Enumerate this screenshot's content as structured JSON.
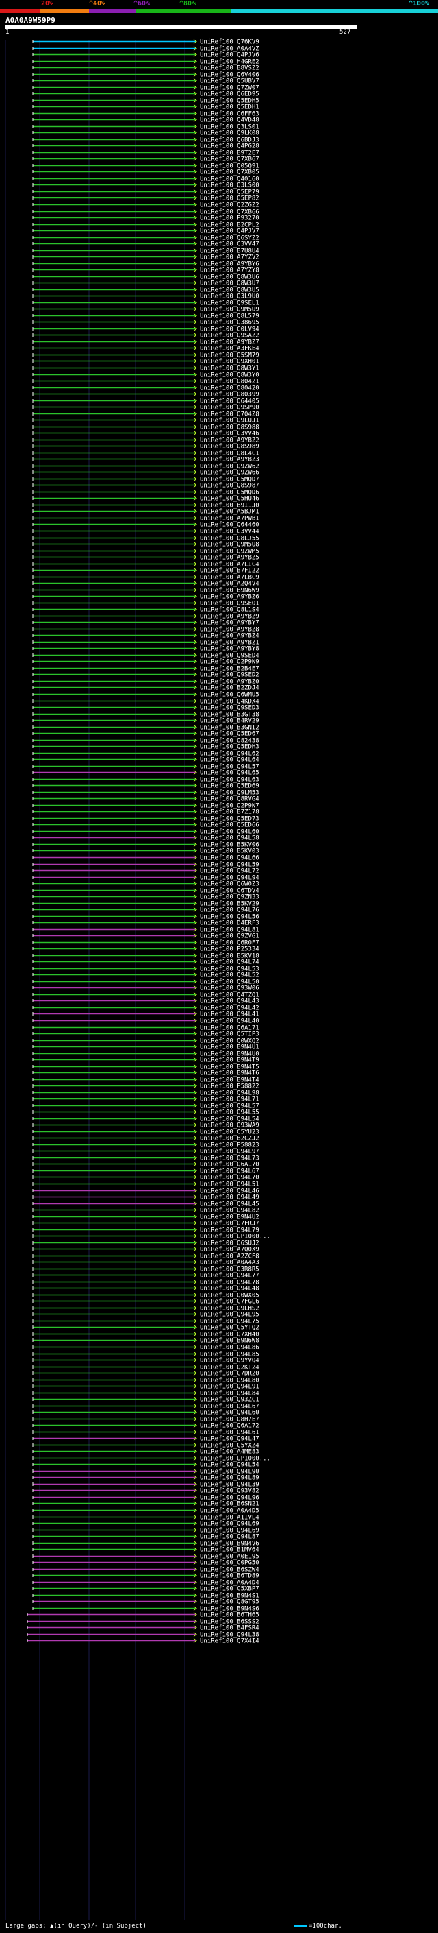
{
  "scale": {
    "labels": [
      "20%",
      "^40%",
      "^60%",
      "^80%",
      "^100%"
    ],
    "colors": [
      "#d81818",
      "#f07c10",
      "#8a1eb0",
      "#18b418",
      "#18d0d8"
    ]
  },
  "query": {
    "id": "A0A0A9W59P9",
    "start": "1",
    "end": "527"
  },
  "legend": {
    "gaps": "Large gaps: ▲(in Query)/- (in Subject)",
    "scale": "=100char."
  },
  "colors": {
    "green": "#2bc12b",
    "purple": "#b03ab0",
    "cyan": "#00c8ff",
    "head": "#c8ff2a",
    "cap": "#ffffff"
  },
  "hits": [
    {
      "name": "UniRef100_Q76KV9",
      "c": "cyan"
    },
    {
      "name": "UniRef100_A0A4VZ",
      "c": "cyan"
    },
    {
      "name": "UniRef100_Q4PJV6",
      "c": "green"
    },
    {
      "name": "UniRef100_H4GRE2",
      "c": "green"
    },
    {
      "name": "UniRef100_B8VSZ2",
      "c": "green"
    },
    {
      "name": "UniRef100_Q6V406",
      "c": "green"
    },
    {
      "name": "UniRef100_Q5UBV7",
      "c": "green"
    },
    {
      "name": "UniRef100_Q7ZW07",
      "c": "green"
    },
    {
      "name": "UniRef100_Q6ED95",
      "c": "green"
    },
    {
      "name": "UniRef100_Q5EDH5",
      "c": "green"
    },
    {
      "name": "UniRef100_Q5EDH1",
      "c": "green"
    },
    {
      "name": "UniRef100_C6FF63",
      "c": "green"
    },
    {
      "name": "UniRef100_Q4VD48",
      "c": "green"
    },
    {
      "name": "UniRef100_Q3LS01",
      "c": "green"
    },
    {
      "name": "UniRef100_Q9LK08",
      "c": "green"
    },
    {
      "name": "UniRef100_Q6BDJ3",
      "c": "green"
    },
    {
      "name": "UniRef100_Q4PG28",
      "c": "green"
    },
    {
      "name": "UniRef100_B9T2E7",
      "c": "green"
    },
    {
      "name": "UniRef100_Q7XB67",
      "c": "green"
    },
    {
      "name": "UniRef100_Q05Q91",
      "c": "green"
    },
    {
      "name": "UniRef100_Q7XB05",
      "c": "green"
    },
    {
      "name": "UniRef100_Q40160",
      "c": "green"
    },
    {
      "name": "UniRef100_Q3LS00",
      "c": "green"
    },
    {
      "name": "UniRef100_Q5EP79",
      "c": "green"
    },
    {
      "name": "UniRef100_Q5EP82",
      "c": "green"
    },
    {
      "name": "UniRef100_Q2ZGZ2",
      "c": "green"
    },
    {
      "name": "UniRef100_Q7XB66",
      "c": "green"
    },
    {
      "name": "UniRef100_P93270",
      "c": "green"
    },
    {
      "name": "UniRef100_B2CPL2",
      "c": "green"
    },
    {
      "name": "UniRef100_Q4PJV7",
      "c": "green"
    },
    {
      "name": "UniRef100_Q6SYZ2",
      "c": "green"
    },
    {
      "name": "UniRef100_C3VV47",
      "c": "green"
    },
    {
      "name": "UniRef100_B7U8U4",
      "c": "green"
    },
    {
      "name": "UniRef100_A7YZV2",
      "c": "green"
    },
    {
      "name": "UniRef100_A9YBY6",
      "c": "green"
    },
    {
      "name": "UniRef100_A7YZY8",
      "c": "green"
    },
    {
      "name": "UniRef100_Q8W3U6",
      "c": "green"
    },
    {
      "name": "UniRef100_Q8W3U7",
      "c": "green"
    },
    {
      "name": "UniRef100_Q8W3U5",
      "c": "green"
    },
    {
      "name": "UniRef100_Q3L9U0",
      "c": "green"
    },
    {
      "name": "UniRef100_Q9SEL1",
      "c": "green"
    },
    {
      "name": "UniRef100_Q9M5U9",
      "c": "green"
    },
    {
      "name": "UniRef100_Q8L579",
      "c": "green"
    },
    {
      "name": "UniRef100_Q38695",
      "c": "green"
    },
    {
      "name": "UniRef100_C0LV94",
      "c": "green"
    },
    {
      "name": "UniRef100_Q9SAZ2",
      "c": "green"
    },
    {
      "name": "UniRef100_A9YBZ7",
      "c": "green"
    },
    {
      "name": "UniRef100_A3FKE4",
      "c": "green"
    },
    {
      "name": "UniRef100_Q5SM79",
      "c": "green"
    },
    {
      "name": "UniRef100_Q9XH01",
      "c": "green"
    },
    {
      "name": "UniRef100_Q8W3Y1",
      "c": "green"
    },
    {
      "name": "UniRef100_Q8W3Y0",
      "c": "green"
    },
    {
      "name": "UniRef100_O80421",
      "c": "green"
    },
    {
      "name": "UniRef100_O80420",
      "c": "green"
    },
    {
      "name": "UniRef100_O80399",
      "c": "green"
    },
    {
      "name": "UniRef100_Q64405",
      "c": "green"
    },
    {
      "name": "UniRef100_Q9SP90",
      "c": "green"
    },
    {
      "name": "UniRef100_Q704Z8",
      "c": "green"
    },
    {
      "name": "UniRef100_Q9LUJ1",
      "c": "green"
    },
    {
      "name": "UniRef100_Q8S988",
      "c": "green"
    },
    {
      "name": "UniRef100_C3VV46",
      "c": "green"
    },
    {
      "name": "UniRef100_A9YBZ2",
      "c": "green"
    },
    {
      "name": "UniRef100_Q8S989",
      "c": "green"
    },
    {
      "name": "UniRef100_Q8L4C1",
      "c": "green"
    },
    {
      "name": "UniRef100_A9YBZ3",
      "c": "green"
    },
    {
      "name": "UniRef100_Q9ZW62",
      "c": "green"
    },
    {
      "name": "UniRef100_Q9ZW66",
      "c": "green"
    },
    {
      "name": "UniRef100_C5MQD7",
      "c": "green"
    },
    {
      "name": "UniRef100_Q8S987",
      "c": "green"
    },
    {
      "name": "UniRef100_C5MQD6",
      "c": "green"
    },
    {
      "name": "UniRef100_C5HU46",
      "c": "green"
    },
    {
      "name": "UniRef100_B9I1J0",
      "c": "green"
    },
    {
      "name": "UniRef100_A5BJM1",
      "c": "green"
    },
    {
      "name": "UniRef100_A7PWB1",
      "c": "green"
    },
    {
      "name": "UniRef100_Q64460",
      "c": "green"
    },
    {
      "name": "UniRef100_C3VV44",
      "c": "green"
    },
    {
      "name": "UniRef100_Q8LJ55",
      "c": "green"
    },
    {
      "name": "UniRef100_Q9M5U8",
      "c": "green"
    },
    {
      "name": "UniRef100_Q9ZWM5",
      "c": "green"
    },
    {
      "name": "UniRef100_A9YBZ5",
      "c": "green"
    },
    {
      "name": "UniRef100_A7LIC4",
      "c": "green"
    },
    {
      "name": "UniRef100_B7FI22",
      "c": "green"
    },
    {
      "name": "UniRef100_A7LBC9",
      "c": "green"
    },
    {
      "name": "UniRef100_A2Q4V4",
      "c": "green"
    },
    {
      "name": "UniRef100_B9N6W9",
      "c": "green"
    },
    {
      "name": "UniRef100_A9YBZ6",
      "c": "green"
    },
    {
      "name": "UniRef100_Q9SEO1",
      "c": "green"
    },
    {
      "name": "UniRef100_Q8L1S4",
      "c": "green"
    },
    {
      "name": "UniRef100_A9YBZ9",
      "c": "green"
    },
    {
      "name": "UniRef100_A9YBY7",
      "c": "green"
    },
    {
      "name": "UniRef100_A9YBZ8",
      "c": "green"
    },
    {
      "name": "UniRef100_A9YBZ4",
      "c": "green"
    },
    {
      "name": "UniRef100_A9YBZ1",
      "c": "green"
    },
    {
      "name": "UniRef100_A9YBY8",
      "c": "green"
    },
    {
      "name": "UniRef100_Q9SED4",
      "c": "green"
    },
    {
      "name": "UniRef100_O2P9N9",
      "c": "green"
    },
    {
      "name": "UniRef100_B2B4E7",
      "c": "green"
    },
    {
      "name": "UniRef100_Q9SED2",
      "c": "green"
    },
    {
      "name": "UniRef100_A9YBZ0",
      "c": "green"
    },
    {
      "name": "UniRef100_B2ZDJ4",
      "c": "green"
    },
    {
      "name": "UniRef100_Q6WMU5",
      "c": "green"
    },
    {
      "name": "UniRef100_Q4KDX4",
      "c": "green"
    },
    {
      "name": "UniRef100_Q9SED3",
      "c": "green"
    },
    {
      "name": "UniRef100_B3GT38",
      "c": "green"
    },
    {
      "name": "UniRef100_B4RV29",
      "c": "green"
    },
    {
      "name": "UniRef100_B3GNI2",
      "c": "green"
    },
    {
      "name": "UniRef100_Q5ED67",
      "c": "green"
    },
    {
      "name": "UniRef100_O82438",
      "c": "green"
    },
    {
      "name": "UniRef100_Q5EDH3",
      "c": "green"
    },
    {
      "name": "UniRef100_Q94L62",
      "c": "green"
    },
    {
      "name": "UniRef100_Q94L64",
      "c": "green"
    },
    {
      "name": "UniRef100_Q94L57",
      "c": "green"
    },
    {
      "name": "UniRef100_Q94L65",
      "c": "purple"
    },
    {
      "name": "UniRef100_Q94L63",
      "c": "green"
    },
    {
      "name": "UniRef100_Q5ED69",
      "c": "green"
    },
    {
      "name": "UniRef100_Q9LM53",
      "c": "green"
    },
    {
      "name": "UniRef100_Q8RVG4",
      "c": "green"
    },
    {
      "name": "UniRef100_O2P9N7",
      "c": "green"
    },
    {
      "name": "UniRef100_B7Z178",
      "c": "green"
    },
    {
      "name": "UniRef100_Q5ED73",
      "c": "green"
    },
    {
      "name": "UniRef100_Q5ED66",
      "c": "green"
    },
    {
      "name": "UniRef100_Q94L60",
      "c": "green"
    },
    {
      "name": "UniRef100_Q94L58",
      "c": "purple"
    },
    {
      "name": "UniRef100_B5KV06",
      "c": "green"
    },
    {
      "name": "UniRef100_B5KV03",
      "c": "green"
    },
    {
      "name": "UniRef100_Q94L66",
      "c": "purple"
    },
    {
      "name": "UniRef100_Q94L59",
      "c": "purple"
    },
    {
      "name": "UniRef100_Q94L72",
      "c": "purple"
    },
    {
      "name": "UniRef100_Q94L94",
      "c": "purple"
    },
    {
      "name": "UniRef100_Q6W0Z3",
      "c": "green"
    },
    {
      "name": "UniRef100_C6TDV4",
      "c": "green"
    },
    {
      "name": "UniRef100_Q9ZN33",
      "c": "green"
    },
    {
      "name": "UniRef100_B5KV29",
      "c": "green"
    },
    {
      "name": "UniRef100_Q94L76",
      "c": "green"
    },
    {
      "name": "UniRef100_Q94L56",
      "c": "green"
    },
    {
      "name": "UniRef100_D4ERF3",
      "c": "green"
    },
    {
      "name": "UniRef100_Q94L81",
      "c": "purple"
    },
    {
      "name": "UniRef100_Q9ZVG1",
      "c": "purple"
    },
    {
      "name": "UniRef100_Q6R0F7",
      "c": "green"
    },
    {
      "name": "UniRef100_P25334",
      "c": "green"
    },
    {
      "name": "UniRef100_B5KV18",
      "c": "green"
    },
    {
      "name": "UniRef100_Q94L74",
      "c": "green"
    },
    {
      "name": "UniRef100_Q94L53",
      "c": "green"
    },
    {
      "name": "UniRef100_Q94L52",
      "c": "green"
    },
    {
      "name": "UniRef100_Q94L50",
      "c": "green"
    },
    {
      "name": "UniRef100_Q93W06",
      "c": "purple"
    },
    {
      "name": "UniRef100_Q4TZQ1",
      "c": "green"
    },
    {
      "name": "UniRef100_Q94L43",
      "c": "purple"
    },
    {
      "name": "UniRef100_Q94L42",
      "c": "green"
    },
    {
      "name": "UniRef100_Q94L41",
      "c": "purple"
    },
    {
      "name": "UniRef100_Q94L40",
      "c": "purple"
    },
    {
      "name": "UniRef100_Q6A171",
      "c": "green"
    },
    {
      "name": "UniRef100_Q5TIP3",
      "c": "green"
    },
    {
      "name": "UniRef100_Q0WXQ2",
      "c": "green"
    },
    {
      "name": "UniRef100_B9N4U1",
      "c": "green"
    },
    {
      "name": "UniRef100_B9N4U0",
      "c": "green"
    },
    {
      "name": "UniRef100_B9N4T9",
      "c": "green"
    },
    {
      "name": "UniRef100_B9N4T5",
      "c": "green"
    },
    {
      "name": "UniRef100_B9N4T6",
      "c": "green"
    },
    {
      "name": "UniRef100_B9N4T4",
      "c": "green"
    },
    {
      "name": "UniRef100_P58822",
      "c": "green"
    },
    {
      "name": "UniRef100_Q94L98",
      "c": "green"
    },
    {
      "name": "UniRef100_Q94L71",
      "c": "green"
    },
    {
      "name": "UniRef100_Q94L57",
      "c": "green"
    },
    {
      "name": "UniRef100_Q94L55",
      "c": "green"
    },
    {
      "name": "UniRef100_Q94L54",
      "c": "green"
    },
    {
      "name": "UniRef100_Q93WA9",
      "c": "green"
    },
    {
      "name": "UniRef100_C5YU23",
      "c": "green"
    },
    {
      "name": "UniRef100_B2CZJ2",
      "c": "green"
    },
    {
      "name": "UniRef100_P58823",
      "c": "green"
    },
    {
      "name": "UniRef100_Q94L97",
      "c": "green"
    },
    {
      "name": "UniRef100_Q94L73",
      "c": "green"
    },
    {
      "name": "UniRef100_Q6A170",
      "c": "green"
    },
    {
      "name": "UniRef100_Q94L67",
      "c": "green"
    },
    {
      "name": "UniRef100_Q94L70",
      "c": "green"
    },
    {
      "name": "UniRef100_Q94L51",
      "c": "green"
    },
    {
      "name": "UniRef100_Q94L46",
      "c": "purple"
    },
    {
      "name": "UniRef100_Q94L49",
      "c": "purple"
    },
    {
      "name": "UniRef100_Q94L45",
      "c": "purple"
    },
    {
      "name": "UniRef100_Q94L82",
      "c": "green"
    },
    {
      "name": "UniRef100_B9N4U2",
      "c": "green"
    },
    {
      "name": "UniRef100_O7FRJ7",
      "c": "green"
    },
    {
      "name": "UniRef100_Q94L79",
      "c": "green"
    },
    {
      "name": "UniRef100_UP1000...",
      "c": "green"
    },
    {
      "name": "UniRef100_Q6SUJ2",
      "c": "green"
    },
    {
      "name": "UniRef100_A7Q0X9",
      "c": "green"
    },
    {
      "name": "UniRef100_A2ZCF8",
      "c": "green"
    },
    {
      "name": "UniRef100_A0A4A3",
      "c": "green"
    },
    {
      "name": "UniRef100_Q3R8R5",
      "c": "green"
    },
    {
      "name": "UniRef100_Q94L77",
      "c": "green"
    },
    {
      "name": "UniRef100_Q94L78",
      "c": "green"
    },
    {
      "name": "UniRef100_Q94L48",
      "c": "green"
    },
    {
      "name": "UniRef100_Q0WX05",
      "c": "green"
    },
    {
      "name": "UniRef100_C7FGL6",
      "c": "green"
    },
    {
      "name": "UniRef100_Q9LHS2",
      "c": "green"
    },
    {
      "name": "UniRef100_Q94L95",
      "c": "green"
    },
    {
      "name": "UniRef100_Q94L75",
      "c": "green"
    },
    {
      "name": "UniRef100_C5YTQ2",
      "c": "green"
    },
    {
      "name": "UniRef100_Q7XH40",
      "c": "green"
    },
    {
      "name": "UniRef100_B9N6W8",
      "c": "green"
    },
    {
      "name": "UniRef100_Q94L86",
      "c": "green"
    },
    {
      "name": "UniRef100_Q94L85",
      "c": "green"
    },
    {
      "name": "UniRef100_Q9YVQ4",
      "c": "green"
    },
    {
      "name": "UniRef100_Q2KT24",
      "c": "green"
    },
    {
      "name": "UniRef100_C7DR20",
      "c": "green"
    },
    {
      "name": "UniRef100_Q94L80",
      "c": "green"
    },
    {
      "name": "UniRef100_Q94L91",
      "c": "green"
    },
    {
      "name": "UniRef100_Q94L84",
      "c": "green"
    },
    {
      "name": "UniRef100_Q93ZC1",
      "c": "green"
    },
    {
      "name": "UniRef100_Q94L67",
      "c": "green"
    },
    {
      "name": "UniRef100_Q94L60",
      "c": "green"
    },
    {
      "name": "UniRef100_Q8H7E7",
      "c": "green"
    },
    {
      "name": "UniRef100_Q6A172",
      "c": "green"
    },
    {
      "name": "UniRef100_Q94L61",
      "c": "green"
    },
    {
      "name": "UniRef100_Q94L47",
      "c": "purple"
    },
    {
      "name": "UniRef100_C5YXZ4",
      "c": "green"
    },
    {
      "name": "UniRef100_A4ME83",
      "c": "green"
    },
    {
      "name": "UniRef100_UP1000...",
      "c": "green"
    },
    {
      "name": "UniRef100_Q94L54",
      "c": "green"
    },
    {
      "name": "UniRef100_Q94L90",
      "c": "purple"
    },
    {
      "name": "UniRef100_Q94L89",
      "c": "purple"
    },
    {
      "name": "UniRef100_Q94L39",
      "c": "purple"
    },
    {
      "name": "UniRef100_Q93V82",
      "c": "purple"
    },
    {
      "name": "UniRef100_Q94L96",
      "c": "purple"
    },
    {
      "name": "UniRef100_B6SN21",
      "c": "green"
    },
    {
      "name": "UniRef100_A0A4D5",
      "c": "green"
    },
    {
      "name": "UniRef100_A1IVL4",
      "c": "green"
    },
    {
      "name": "UniRef100_Q94L69",
      "c": "green"
    },
    {
      "name": "UniRef100_Q94L69",
      "c": "green"
    },
    {
      "name": "UniRef100_Q94L87",
      "c": "green"
    },
    {
      "name": "UniRef100_B9N4V6",
      "c": "green"
    },
    {
      "name": "UniRef100_B1MV64",
      "c": "green"
    },
    {
      "name": "UniRef100_A0E195",
      "c": "purple"
    },
    {
      "name": "UniRef100_C0PG50",
      "c": "purple"
    },
    {
      "name": "UniRef100_B6SZW4",
      "c": "purple"
    },
    {
      "name": "UniRef100_B6TD89",
      "c": "green"
    },
    {
      "name": "UniRef100_A0A4D4",
      "c": "purple"
    },
    {
      "name": "UniRef100_C5XBP7",
      "c": "green"
    },
    {
      "name": "UniRef100_B9N4S1",
      "c": "green"
    },
    {
      "name": "UniRef100_Q8GT95",
      "c": "purple"
    },
    {
      "name": "UniRef100_B9N4S6",
      "c": "green"
    },
    {
      "name": "UniRef100_B6TH65",
      "c": "purple"
    },
    {
      "name": "UniRef100_B6SSS2",
      "c": "purple"
    },
    {
      "name": "UniRef100_B4FSR4",
      "c": "purple"
    },
    {
      "name": "UniRef100_Q94L38",
      "c": "purple"
    },
    {
      "name": "UniRef100_Q7X4I4",
      "c": "purple"
    }
  ]
}
